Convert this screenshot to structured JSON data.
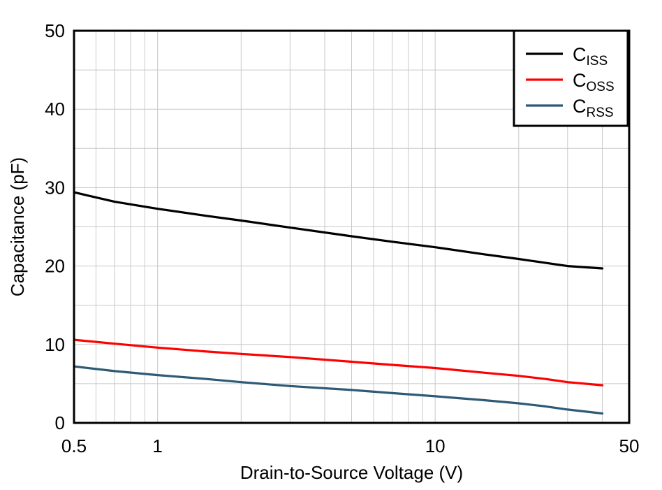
{
  "chart_data": {
    "type": "line",
    "title": "",
    "xlabel": "Drain-to-Source Voltage (V)",
    "ylabel": "Capacitance (pF)",
    "x_scale": "log",
    "xlim": [
      0.5,
      50
    ],
    "ylim": [
      0,
      50
    ],
    "x_ticks": [
      0.5,
      1,
      10,
      50
    ],
    "x_tick_labels": [
      "0.5",
      "1",
      "10",
      "50"
    ],
    "y_ticks": [
      0,
      10,
      20,
      30,
      40,
      50
    ],
    "y_tick_labels": [
      "0",
      "10",
      "20",
      "30",
      "40",
      "50"
    ],
    "grid": true,
    "legend_position": "top-right",
    "series": [
      {
        "name": "C",
        "name_sub": "ISS",
        "color": "#000000",
        "x": [
          0.5,
          0.7,
          1,
          1.5,
          2,
          3,
          5,
          7,
          10,
          15,
          20,
          25,
          30,
          40
        ],
        "y": [
          29.4,
          28.2,
          27.3,
          26.4,
          25.8,
          24.9,
          23.8,
          23.1,
          22.4,
          21.5,
          20.9,
          20.4,
          20.0,
          19.7
        ]
      },
      {
        "name": "C",
        "name_sub": "OSS",
        "color": "#ff0000",
        "x": [
          0.5,
          0.7,
          1,
          1.5,
          2,
          3,
          5,
          7,
          10,
          15,
          20,
          25,
          30,
          40
        ],
        "y": [
          10.6,
          10.1,
          9.6,
          9.1,
          8.8,
          8.4,
          7.8,
          7.4,
          7.0,
          6.4,
          6.0,
          5.6,
          5.2,
          4.8
        ]
      },
      {
        "name": "C",
        "name_sub": "RSS",
        "color": "#2e5a77",
        "x": [
          0.5,
          0.7,
          1,
          1.5,
          2,
          3,
          5,
          7,
          10,
          15,
          20,
          25,
          30,
          40
        ],
        "y": [
          7.2,
          6.6,
          6.1,
          5.6,
          5.2,
          4.7,
          4.2,
          3.8,
          3.4,
          2.9,
          2.5,
          2.1,
          1.7,
          1.2
        ]
      }
    ]
  }
}
